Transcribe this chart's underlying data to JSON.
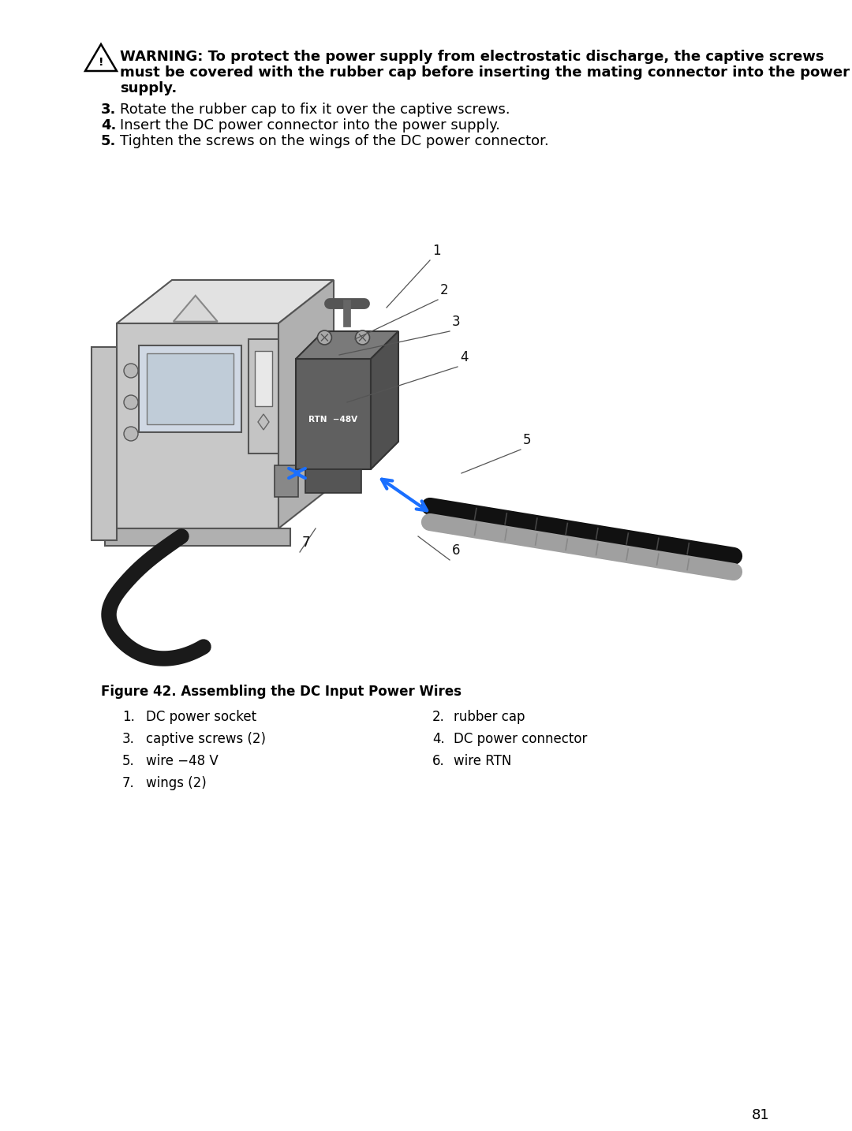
{
  "page_bg": "#ffffff",
  "page_number": "81",
  "warning_line1": "WARNING: To protect the power supply from electrostatic discharge, the captive screws",
  "warning_line2": "must be covered with the rubber cap before inserting the mating connector into the power",
  "warning_line3": "supply.",
  "steps": [
    {
      "num": "3.",
      "text": "Rotate the rubber cap to fix it over the captive screws."
    },
    {
      "num": "4.",
      "text": "Insert the DC power connector into the power supply."
    },
    {
      "num": "5.",
      "text": "Tighten the screws on the wings of the DC power connector."
    }
  ],
  "figure_caption": "Figure 42. Assembling the DC Input Power Wires",
  "legend_left": [
    {
      "num": "1.",
      "text": "DC power socket"
    },
    {
      "num": "3.",
      "text": "captive screws (2)"
    },
    {
      "num": "5.",
      "text": "wire −48 V"
    },
    {
      "num": "7.",
      "text": "wings (2)"
    }
  ],
  "legend_right": [
    {
      "num": "2.",
      "text": "rubber cap"
    },
    {
      "num": "4.",
      "text": "DC power connector"
    },
    {
      "num": "6.",
      "text": "wire RTN"
    }
  ],
  "text_color": "#000000",
  "font_size_body": 13,
  "font_size_caption": 12,
  "font_size_legend": 12,
  "font_size_page_num": 13
}
